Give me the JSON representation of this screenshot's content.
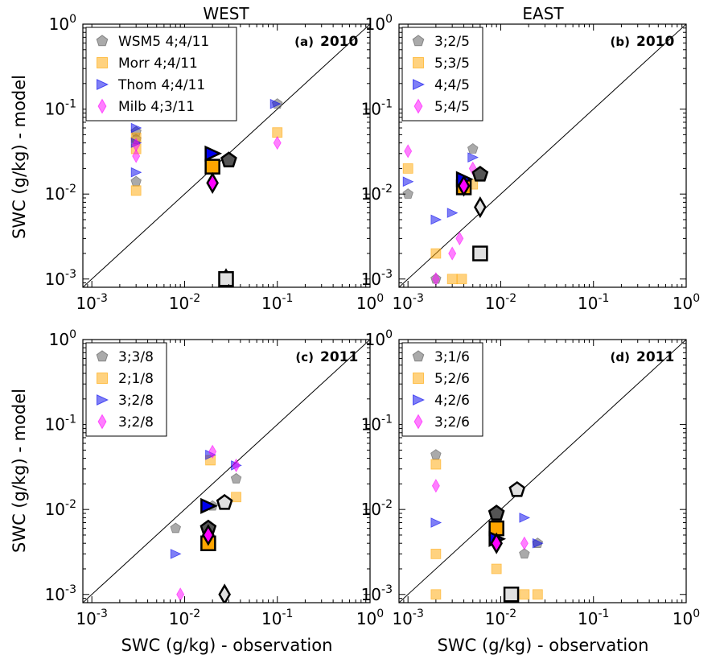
{
  "figure": {
    "column_titles": [
      "WEST",
      "EAST"
    ],
    "ylabel": "SWC (g/kg) - model",
    "xlabel": "SWC (g/kg) - observation"
  },
  "chart_data": [
    {
      "type": "scatter",
      "panel": "(a)",
      "year": "2010",
      "column": "WEST",
      "xlabel": "",
      "ylabel": "SWC (g/kg) - model",
      "xscale": "log",
      "yscale": "log",
      "xlim": [
        0.0008,
        1
      ],
      "ylim": [
        0.0008,
        1
      ],
      "xticks": [
        "10-3",
        "10-2",
        "10-1",
        "100"
      ],
      "yticks": [
        "10-3",
        "10-2",
        "10-1",
        "100"
      ],
      "one_to_one_line": true,
      "legend": {
        "placement": "top-left",
        "entries": [
          "WSM5 4;4/11",
          "Morr 4;4/11",
          "Thom 4;4/11",
          "Milb 4;3/11"
        ]
      },
      "series": [
        {
          "name": "WSM5 4;4/11",
          "marker": "pentagon",
          "color": "#555555",
          "points": [
            [
              0.003,
              0.054
            ],
            [
              0.003,
              0.044
            ],
            [
              0.003,
              0.014
            ],
            [
              0.1,
              0.115
            ]
          ],
          "mean": [
            0.03,
            0.025
          ]
        },
        {
          "name": "Morr 4;4/11",
          "marker": "square",
          "color": "#ffa500",
          "points": [
            [
              0.003,
              0.046
            ],
            [
              0.003,
              0.034
            ],
            [
              0.003,
              0.011
            ],
            [
              0.1,
              0.053
            ]
          ],
          "mean": [
            0.02,
            0.021
          ]
        },
        {
          "name": "Thom 4;4/11",
          "marker": "triangle-right",
          "color": "#0000ee",
          "points": [
            [
              0.003,
              0.06
            ],
            [
              0.003,
              0.04
            ],
            [
              0.003,
              0.018
            ],
            [
              0.095,
              0.115
            ]
          ],
          "mean": [
            0.02,
            0.03
          ]
        },
        {
          "name": "Milb 4;3/11",
          "marker": "diamond",
          "color": "#ff00ff",
          "points": [
            [
              0.003,
              0.038
            ],
            [
              0.003,
              0.028
            ],
            [
              0.1,
              0.04
            ]
          ],
          "mean": [
            0.02,
            0.0135
          ]
        }
      ],
      "extra_points": [
        {
          "marker": "diamond",
          "x": 0.028,
          "y": 0.001
        },
        {
          "marker": "square",
          "x": 0.028,
          "y": 0.001
        }
      ]
    },
    {
      "type": "scatter",
      "panel": "(b)",
      "year": "2010",
      "column": "EAST",
      "xlabel": "",
      "ylabel": "",
      "xscale": "log",
      "yscale": "log",
      "xlim": [
        0.0008,
        1
      ],
      "ylim": [
        0.0008,
        1
      ],
      "xticks": [
        "10-3",
        "10-2",
        "10-1",
        "100"
      ],
      "yticks": [
        "10-3",
        "10-2",
        "10-1",
        "100"
      ],
      "one_to_one_line": true,
      "legend": {
        "placement": "top-left",
        "entries": [
          "3;2/5",
          "5;3/5",
          "4;4/5",
          "5;4/5"
        ]
      },
      "series": [
        {
          "name": "3;2/5",
          "marker": "pentagon",
          "color": "#555555",
          "points": [
            [
              0.001,
              0.01
            ],
            [
              0.002,
              0.001
            ],
            [
              0.005,
              0.034
            ]
          ],
          "mean": [
            0.006,
            0.017
          ]
        },
        {
          "name": "5;3/5",
          "marker": "square",
          "color": "#ffa500",
          "points": [
            [
              0.001,
              0.02
            ],
            [
              0.002,
              0.002
            ],
            [
              0.003,
              0.001
            ],
            [
              0.0038,
              0.001
            ],
            [
              0.005,
              0.013
            ]
          ],
          "mean": [
            0.004,
            0.012
          ]
        },
        {
          "name": "4;4/5",
          "marker": "triangle-right",
          "color": "#0000ee",
          "points": [
            [
              0.001,
              0.014
            ],
            [
              0.002,
              0.005
            ],
            [
              0.003,
              0.006
            ],
            [
              0.005,
              0.027
            ]
          ],
          "mean": [
            0.004,
            0.015
          ]
        },
        {
          "name": "5;4/5",
          "marker": "diamond",
          "color": "#ff00ff",
          "points": [
            [
              0.001,
              0.032
            ],
            [
              0.002,
              0.001
            ],
            [
              0.003,
              0.002
            ],
            [
              0.0036,
              0.003
            ],
            [
              0.005,
              0.02
            ]
          ],
          "mean": [
            0.004,
            0.0125
          ]
        }
      ],
      "extra_points": [
        {
          "marker": "diamond",
          "x": 0.006,
          "y": 0.007
        },
        {
          "marker": "square",
          "x": 0.006,
          "y": 0.002
        }
      ]
    },
    {
      "type": "scatter",
      "panel": "(c)",
      "year": "2011",
      "column": "WEST",
      "xlabel": "SWC (g/kg) - observation",
      "ylabel": "SWC (g/kg) - model",
      "xscale": "log",
      "yscale": "log",
      "xlim": [
        0.0008,
        1
      ],
      "ylim": [
        0.0008,
        1
      ],
      "xticks": [
        "10-3",
        "10-2",
        "10-1",
        "100"
      ],
      "yticks": [
        "10-3",
        "10-2",
        "10-1",
        "100"
      ],
      "one_to_one_line": true,
      "legend": {
        "placement": "top-left",
        "entries": [
          "3;3/8",
          "2;1/8",
          "3;2/8",
          "3;2/8"
        ]
      },
      "series": [
        {
          "name": "3;3/8",
          "marker": "pentagon",
          "color": "#555555",
          "points": [
            [
              0.008,
              0.006
            ],
            [
              0.02,
              0.011
            ],
            [
              0.036,
              0.023
            ]
          ],
          "mean": [
            0.018,
            0.006
          ]
        },
        {
          "name": "2;1/8",
          "marker": "square",
          "color": "#ffa500",
          "points": [
            [
              0.019,
              0.038
            ],
            [
              0.036,
              0.014
            ]
          ],
          "mean": [
            0.018,
            0.004
          ]
        },
        {
          "name": "3;2/8",
          "marker": "triangle-right",
          "color": "#0000ee",
          "points": [
            [
              0.008,
              0.003
            ],
            [
              0.019,
              0.044
            ],
            [
              0.036,
              0.033
            ]
          ],
          "mean": [
            0.018,
            0.011
          ]
        },
        {
          "name": "3;2/8",
          "marker": "diamond",
          "color": "#ff00ff",
          "points": [
            [
              0.009,
              0.001
            ],
            [
              0.02,
              0.048
            ],
            [
              0.036,
              0.033
            ]
          ],
          "mean": [
            0.018,
            0.005
          ]
        }
      ],
      "extra_points": [
        {
          "marker": "pentagon",
          "x": 0.027,
          "y": 0.012
        },
        {
          "marker": "diamond",
          "x": 0.027,
          "y": 0.001
        }
      ]
    },
    {
      "type": "scatter",
      "panel": "(d)",
      "year": "2011",
      "column": "EAST",
      "xlabel": "SWC (g/kg) - observation",
      "ylabel": "",
      "xscale": "log",
      "yscale": "log",
      "xlim": [
        0.0008,
        1
      ],
      "ylim": [
        0.0008,
        1
      ],
      "xticks": [
        "10-3",
        "10-2",
        "10-1",
        "100"
      ],
      "yticks": [
        "10-3",
        "10-2",
        "10-1",
        "100"
      ],
      "one_to_one_line": true,
      "legend": {
        "placement": "top-left",
        "entries": [
          "3;1/6",
          "5;2/6",
          "4;2/6",
          "3;2/6"
        ]
      },
      "series": [
        {
          "name": "3;1/6",
          "marker": "pentagon",
          "color": "#555555",
          "points": [
            [
              0.002,
              0.044
            ],
            [
              0.018,
              0.003
            ],
            [
              0.025,
              0.004
            ]
          ],
          "mean": [
            0.009,
            0.009
          ]
        },
        {
          "name": "5;2/6",
          "marker": "square",
          "color": "#ffa500",
          "points": [
            [
              0.002,
              0.034
            ],
            [
              0.002,
              0.003
            ],
            [
              0.002,
              0.001
            ],
            [
              0.009,
              0.002
            ],
            [
              0.018,
              0.001
            ],
            [
              0.025,
              0.001
            ]
          ],
          "mean": [
            0.009,
            0.006
          ]
        },
        {
          "name": "4;2/6",
          "marker": "triangle-right",
          "color": "#0000ee",
          "points": [
            [
              0.002,
              0.007
            ],
            [
              0.018,
              0.008
            ],
            [
              0.025,
              0.004
            ]
          ],
          "mean": [
            0.009,
            0.0045
          ]
        },
        {
          "name": "3;2/6",
          "marker": "diamond",
          "color": "#ff00ff",
          "points": [
            [
              0.002,
              0.019
            ],
            [
              0.018,
              0.004
            ]
          ],
          "mean": [
            0.009,
            0.004
          ]
        }
      ],
      "extra_points": [
        {
          "marker": "pentagon",
          "x": 0.015,
          "y": 0.017
        },
        {
          "marker": "square",
          "x": 0.013,
          "y": 0.001
        }
      ]
    }
  ]
}
